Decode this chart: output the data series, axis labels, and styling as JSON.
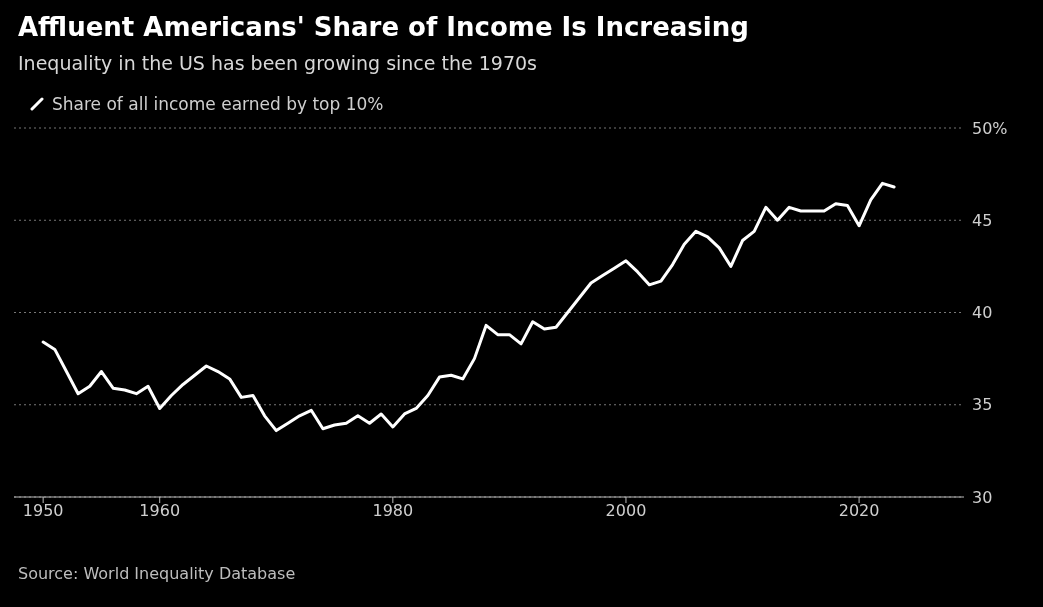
{
  "chart_data": {
    "type": "line",
    "title": "Affluent Americans' Share of Income Is Increasing",
    "subtitle": "Inequality in the US has been growing since the 1970s",
    "annotations": [
      "Source: World Inequality Database"
    ],
    "x": [
      1950,
      1951,
      1952,
      1953,
      1954,
      1955,
      1956,
      1957,
      1958,
      1959,
      1960,
      1961,
      1962,
      1963,
      1964,
      1965,
      1966,
      1967,
      1968,
      1969,
      1970,
      1971,
      1972,
      1973,
      1974,
      1975,
      1976,
      1977,
      1978,
      1979,
      1980,
      1981,
      1982,
      1983,
      1984,
      1985,
      1986,
      1987,
      1988,
      1989,
      1990,
      1991,
      1992,
      1993,
      1994,
      1995,
      1996,
      1997,
      1998,
      1999,
      2000,
      2001,
      2002,
      2003,
      2004,
      2005,
      2006,
      2007,
      2008,
      2009,
      2010,
      2011,
      2012,
      2013,
      2014,
      2015,
      2016,
      2017,
      2018,
      2019,
      2020,
      2021,
      2022,
      2023
    ],
    "series": [
      {
        "name": "Share of all income earned by top 10%",
        "color": "#ffffff",
        "values": [
          38.4,
          38.0,
          36.8,
          35.6,
          36.0,
          36.8,
          35.9,
          35.8,
          35.6,
          36.0,
          34.8,
          35.5,
          36.1,
          36.6,
          37.1,
          36.8,
          36.4,
          35.4,
          35.5,
          34.4,
          33.6,
          34.0,
          34.4,
          34.7,
          33.7,
          33.9,
          34.0,
          34.4,
          34.0,
          34.5,
          33.8,
          34.5,
          34.8,
          35.5,
          36.5,
          36.6,
          36.4,
          37.5,
          39.3,
          38.8,
          38.8,
          38.3,
          39.5,
          39.1,
          39.2,
          40.0,
          40.8,
          41.6,
          42.0,
          42.4,
          42.8,
          42.2,
          41.5,
          41.7,
          42.6,
          43.7,
          44.4,
          44.1,
          43.5,
          42.5,
          43.9,
          44.4,
          45.7,
          45.0,
          45.7,
          45.5,
          45.5,
          45.5,
          45.9,
          45.8,
          44.7,
          46.1,
          47.0,
          46.8
        ]
      }
    ],
    "xlim": [
      1947.5,
      2029
    ],
    "xticks": [
      1950,
      1960,
      1980,
      2000,
      2020
    ],
    "ylim": [
      30,
      50
    ],
    "yticks": [
      30,
      35,
      40,
      45,
      {
        "value": 50,
        "label": "50%"
      }
    ],
    "grid": "y",
    "legend": "top left"
  }
}
